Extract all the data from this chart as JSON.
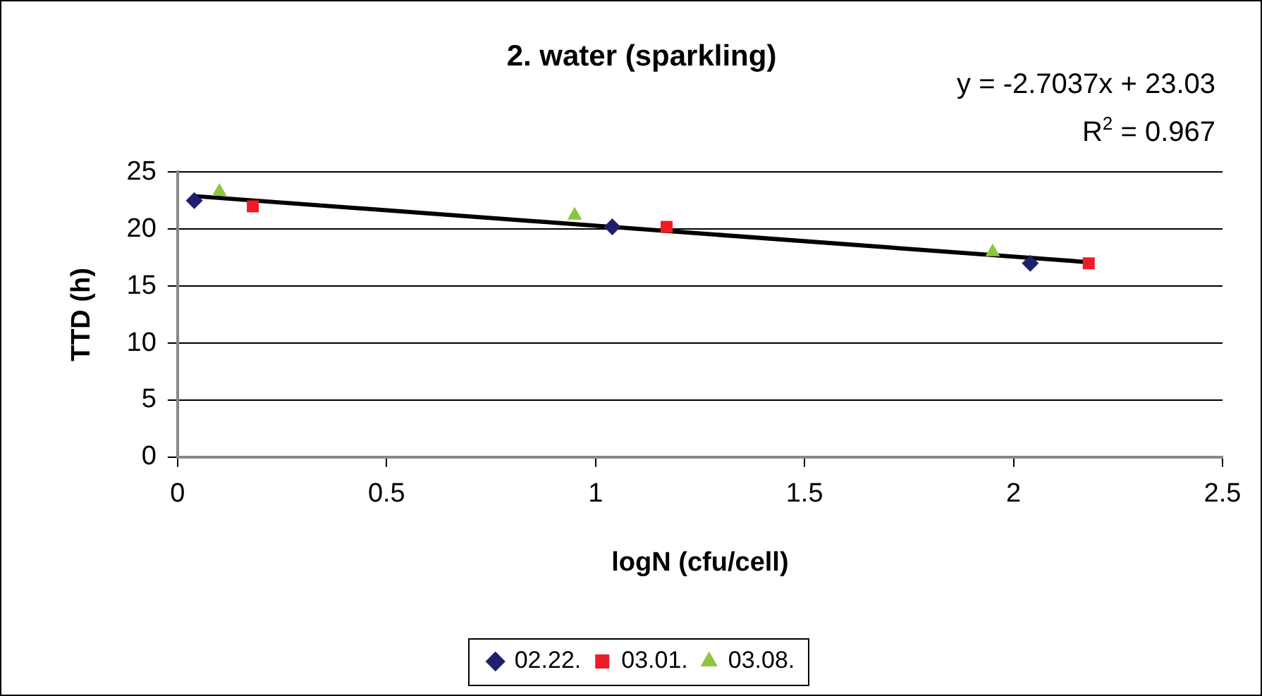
{
  "chart_data": {
    "type": "scatter",
    "title": "2. water (sparkling)",
    "xlabel": "logN (cfu/cell)",
    "ylabel": "TTD (h)",
    "annotations": [
      "y = -2.7037x + 23.03",
      "R$^{2}$ = 0.967"
    ],
    "xlim": [
      0,
      2.5
    ],
    "xticks": [
      0,
      0.5,
      1,
      1.5,
      2,
      2.5
    ],
    "ylim": [
      0,
      25
    ],
    "yticks": [
      0,
      5,
      10,
      15,
      20,
      25
    ],
    "grid": "y",
    "legend": "bottom",
    "series": [
      {
        "name": "02.22.",
        "color": "#1f1f6e",
        "marker": "diamond",
        "x": [
          0.04,
          1.04,
          2.04
        ],
        "values": [
          22.5,
          20.2,
          17.0
        ]
      },
      {
        "name": "03.01.",
        "color": "#ee1c25",
        "marker": "square",
        "x": [
          0.18,
          1.17,
          2.18
        ],
        "values": [
          22.0,
          20.2,
          17.0
        ]
      },
      {
        "name": "03.08.",
        "color": "#8cc63f",
        "marker": "triangle",
        "x": [
          0.1,
          0.95,
          1.95
        ],
        "values": [
          23.3,
          21.2,
          18.0
        ]
      },
      {
        "type": "line",
        "color": "#000000",
        "marker": "none",
        "x": [
          0.04,
          2.18
        ],
        "values": [
          22.9,
          17.1
        ]
      }
    ]
  }
}
